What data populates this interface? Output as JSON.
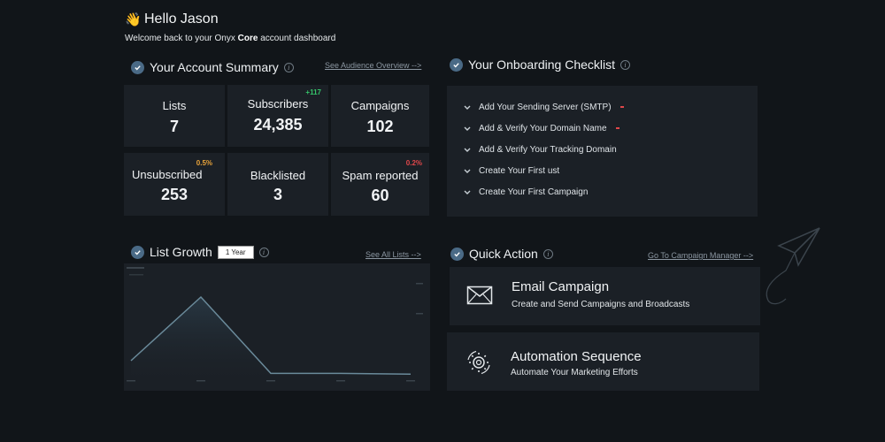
{
  "header": {
    "emoji": "👋",
    "greeting": "Hello Jason",
    "welcome_prefix": "Welcome back to your Onyx ",
    "welcome_bold": "Core",
    "welcome_suffix": " account dashboard"
  },
  "summary": {
    "title": "Your Account Summary",
    "link": "See Audience Overview -->",
    "stats": [
      {
        "label": "Lists",
        "value": "7",
        "badge": ""
      },
      {
        "label": "Subscribers",
        "value": "24,385",
        "badge": "+117"
      },
      {
        "label": "Campaigns",
        "value": "102",
        "badge": ""
      },
      {
        "label": "Unsubscribed",
        "value": "253",
        "badge": "0.5%"
      },
      {
        "label": "Blacklisted",
        "value": "3",
        "badge": ""
      },
      {
        "label": "Spam reported",
        "value": "60",
        "badge": "0.2%"
      }
    ]
  },
  "onboarding": {
    "title": "Your Onboarding Checklist",
    "items": [
      {
        "label": "Add Your Sending Server (SMTP)",
        "flag": true
      },
      {
        "label": "Add & Verify Your Domain Name",
        "flag": true
      },
      {
        "label": "Add & Verify Your Tracking Domain",
        "flag": false
      },
      {
        "label": "Create Your First ust",
        "flag": false
      },
      {
        "label": "Create Your First Campaign",
        "flag": false
      }
    ]
  },
  "growth": {
    "title": "List Growth",
    "range": "1 Year",
    "link": "See All Lists -->"
  },
  "chart_data": {
    "type": "area",
    "series": [
      {
        "values": [
          1,
          5,
          0.2,
          0.2,
          0.15
        ]
      }
    ],
    "ylim": [
      0,
      6
    ],
    "grid": false
  },
  "quick_action": {
    "title": "Quick Action",
    "link": "Go To Campaign Manager -->",
    "actions": [
      {
        "icon": "envelope-icon",
        "title": "Email Campaign",
        "desc": "Create and Send Campaigns and Broadcasts"
      },
      {
        "icon": "automation-gear-icon",
        "title": "Automation Sequence",
        "desc": "Automate Your Marketing Efforts"
      }
    ]
  },
  "colors": {
    "background": "#111519",
    "card": "#1b2026",
    "accent": "#4a6a86",
    "positive": "#35c46a",
    "warning": "#e8a33a",
    "danger": "#e0474a"
  }
}
